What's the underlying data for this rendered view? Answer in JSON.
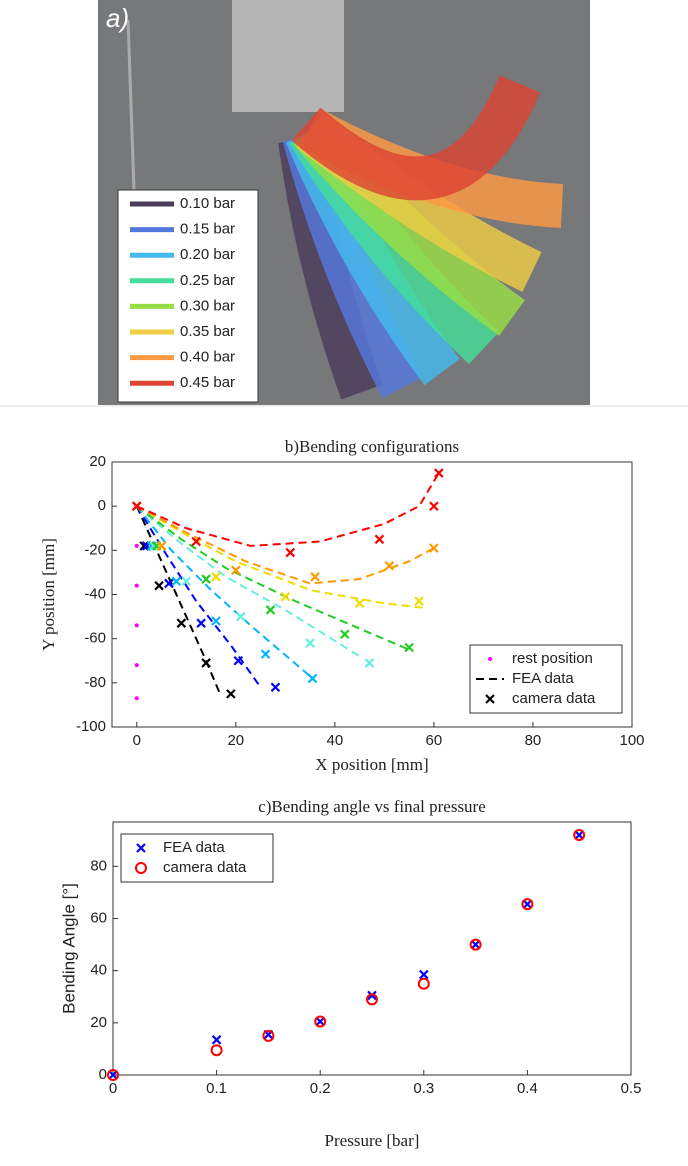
{
  "photo": {
    "label": "a)",
    "legend": [
      {
        "label": "0.10 bar",
        "color": "#4b3b5c"
      },
      {
        "label": "0.15 bar",
        "color": "#5577dd"
      },
      {
        "label": "0.20 bar",
        "color": "#44bbee"
      },
      {
        "label": "0.25 bar",
        "color": "#44dd99"
      },
      {
        "label": "0.30 bar",
        "color": "#99dd44"
      },
      {
        "label": "0.35 bar",
        "color": "#eecc44"
      },
      {
        "label": "0.40 bar",
        "color": "#ff9944"
      },
      {
        "label": "0.45 bar",
        "color": "#dd4433"
      }
    ]
  },
  "chart_data": [
    {
      "type": "line",
      "title": "b)Bending configurations",
      "xlabel": "X position [mm]",
      "ylabel": "Y position [mm]",
      "xlim": [
        -5,
        100
      ],
      "ylim": [
        -100,
        20
      ],
      "xticks": [
        0,
        20,
        40,
        60,
        80,
        100
      ],
      "yticks": [
        -100,
        -80,
        -60,
        -40,
        -20,
        0,
        20
      ],
      "legend": "lower right",
      "series": [
        {
          "name": "rest position",
          "marker": "dot",
          "color": "#ff00ff",
          "x": [
            0,
            0,
            0,
            0,
            0,
            0
          ],
          "y": [
            0,
            -18,
            -36,
            -54,
            -72,
            -87
          ]
        },
        {
          "name": "FEA data",
          "marker": "dashed",
          "color": "#000000",
          "lines": [
            {
              "color": "#000000",
              "x": [
                0,
                5,
                10,
                14,
                17
              ],
              "y": [
                0,
                -25,
                -50,
                -70,
                -86
              ]
            },
            {
              "color": "#0000ff",
              "x": [
                0,
                6,
                12,
                19,
                25
              ],
              "y": [
                0,
                -22,
                -43,
                -63,
                -82
              ]
            },
            {
              "color": "#00b4ff",
              "x": [
                0,
                7,
                15,
                24,
                35
              ],
              "y": [
                0,
                -20,
                -38,
                -56,
                -77
              ]
            },
            {
              "color": "#66eedd",
              "x": [
                0,
                9,
                18,
                30,
                45
              ],
              "y": [
                0,
                -17,
                -32,
                -47,
                -68
              ]
            },
            {
              "color": "#22cc22",
              "x": [
                0,
                9,
                18,
                32,
                55
              ],
              "y": [
                0,
                -15,
                -28,
                -43,
                -65
              ]
            },
            {
              "color": "#eedd00",
              "x": [
                0,
                10,
                20,
                35,
                50,
                58
              ],
              "y": [
                0,
                -13,
                -25,
                -38,
                -44,
                -46
              ]
            },
            {
              "color": "#ff9900",
              "x": [
                0,
                10,
                22,
                35,
                45,
                55,
                60
              ],
              "y": [
                0,
                -12,
                -25,
                -35,
                -33,
                -25,
                -19
              ]
            },
            {
              "color": "#ff0000",
              "x": [
                0,
                10,
                23,
                37,
                50,
                57,
                61
              ],
              "y": [
                0,
                -10,
                -18,
                -16,
                -8,
                0,
                15
              ]
            }
          ]
        },
        {
          "name": "camera data",
          "marker": "cross",
          "color": "#000000",
          "lines": [
            {
              "color": "#000000",
              "x": [
                0,
                1.5,
                4.5,
                9,
                14,
                19
              ],
              "y": [
                0,
                -18,
                -36,
                -53,
                -71,
                -85
              ]
            },
            {
              "color": "#0000ff",
              "x": [
                0,
                2,
                6.5,
                13,
                20.5,
                28
              ],
              "y": [
                0,
                -18,
                -35,
                -53,
                -70,
                -82
              ]
            },
            {
              "color": "#00b4ff",
              "x": [
                0,
                3,
                8,
                16,
                26,
                35.5
              ],
              "y": [
                0,
                -18,
                -34,
                -52,
                -67,
                -78
              ]
            },
            {
              "color": "#66eedd",
              "x": [
                0,
                3.5,
                10,
                21,
                35,
                47
              ],
              "y": [
                0,
                -18,
                -34,
                -50,
                -62,
                -71
              ]
            },
            {
              "color": "#22cc22",
              "x": [
                0,
                4,
                14,
                27,
                42,
                55
              ],
              "y": [
                0,
                -18,
                -33,
                -47,
                -58,
                -64
              ]
            },
            {
              "color": "#eedd00",
              "x": [
                0,
                5,
                16,
                30,
                45,
                57
              ],
              "y": [
                0,
                -18,
                -32,
                -41,
                -44,
                -43
              ]
            },
            {
              "color": "#ff9900",
              "x": [
                0,
                5,
                20,
                36,
                51,
                60
              ],
              "y": [
                0,
                -18,
                -29,
                -32,
                -27,
                -19
              ]
            },
            {
              "color": "#ff0000",
              "x": [
                0,
                12,
                31,
                49,
                60,
                61
              ],
              "y": [
                0,
                -16,
                -21,
                -15,
                0,
                15
              ]
            }
          ]
        }
      ]
    },
    {
      "type": "scatter",
      "title": "c)Bending angle vs final pressure",
      "xlabel": "Pressure [bar]",
      "ylabel": "Bending Angle [°]",
      "xlim": [
        0,
        0.5
      ],
      "ylim": [
        0,
        97
      ],
      "xticks": [
        0,
        0.1,
        0.2,
        0.3,
        0.4,
        0.5
      ],
      "yticks": [
        0,
        20,
        40,
        60,
        80
      ],
      "legend": "upper left",
      "series": [
        {
          "name": "FEA data",
          "marker": "cross",
          "color": "#0000ff",
          "x": [
            0,
            0.1,
            0.15,
            0.2,
            0.25,
            0.3,
            0.35,
            0.4,
            0.45
          ],
          "y": [
            0,
            13.5,
            15.5,
            20.5,
            30.5,
            38.5,
            50,
            65.5,
            92
          ]
        },
        {
          "name": "camera data",
          "marker": "circle",
          "color": "#ff0000",
          "x": [
            0,
            0.1,
            0.15,
            0.2,
            0.25,
            0.3,
            0.35,
            0.4,
            0.45
          ],
          "y": [
            0,
            9.5,
            15,
            20.5,
            29,
            35,
            50,
            65.5,
            92
          ]
        }
      ]
    }
  ]
}
